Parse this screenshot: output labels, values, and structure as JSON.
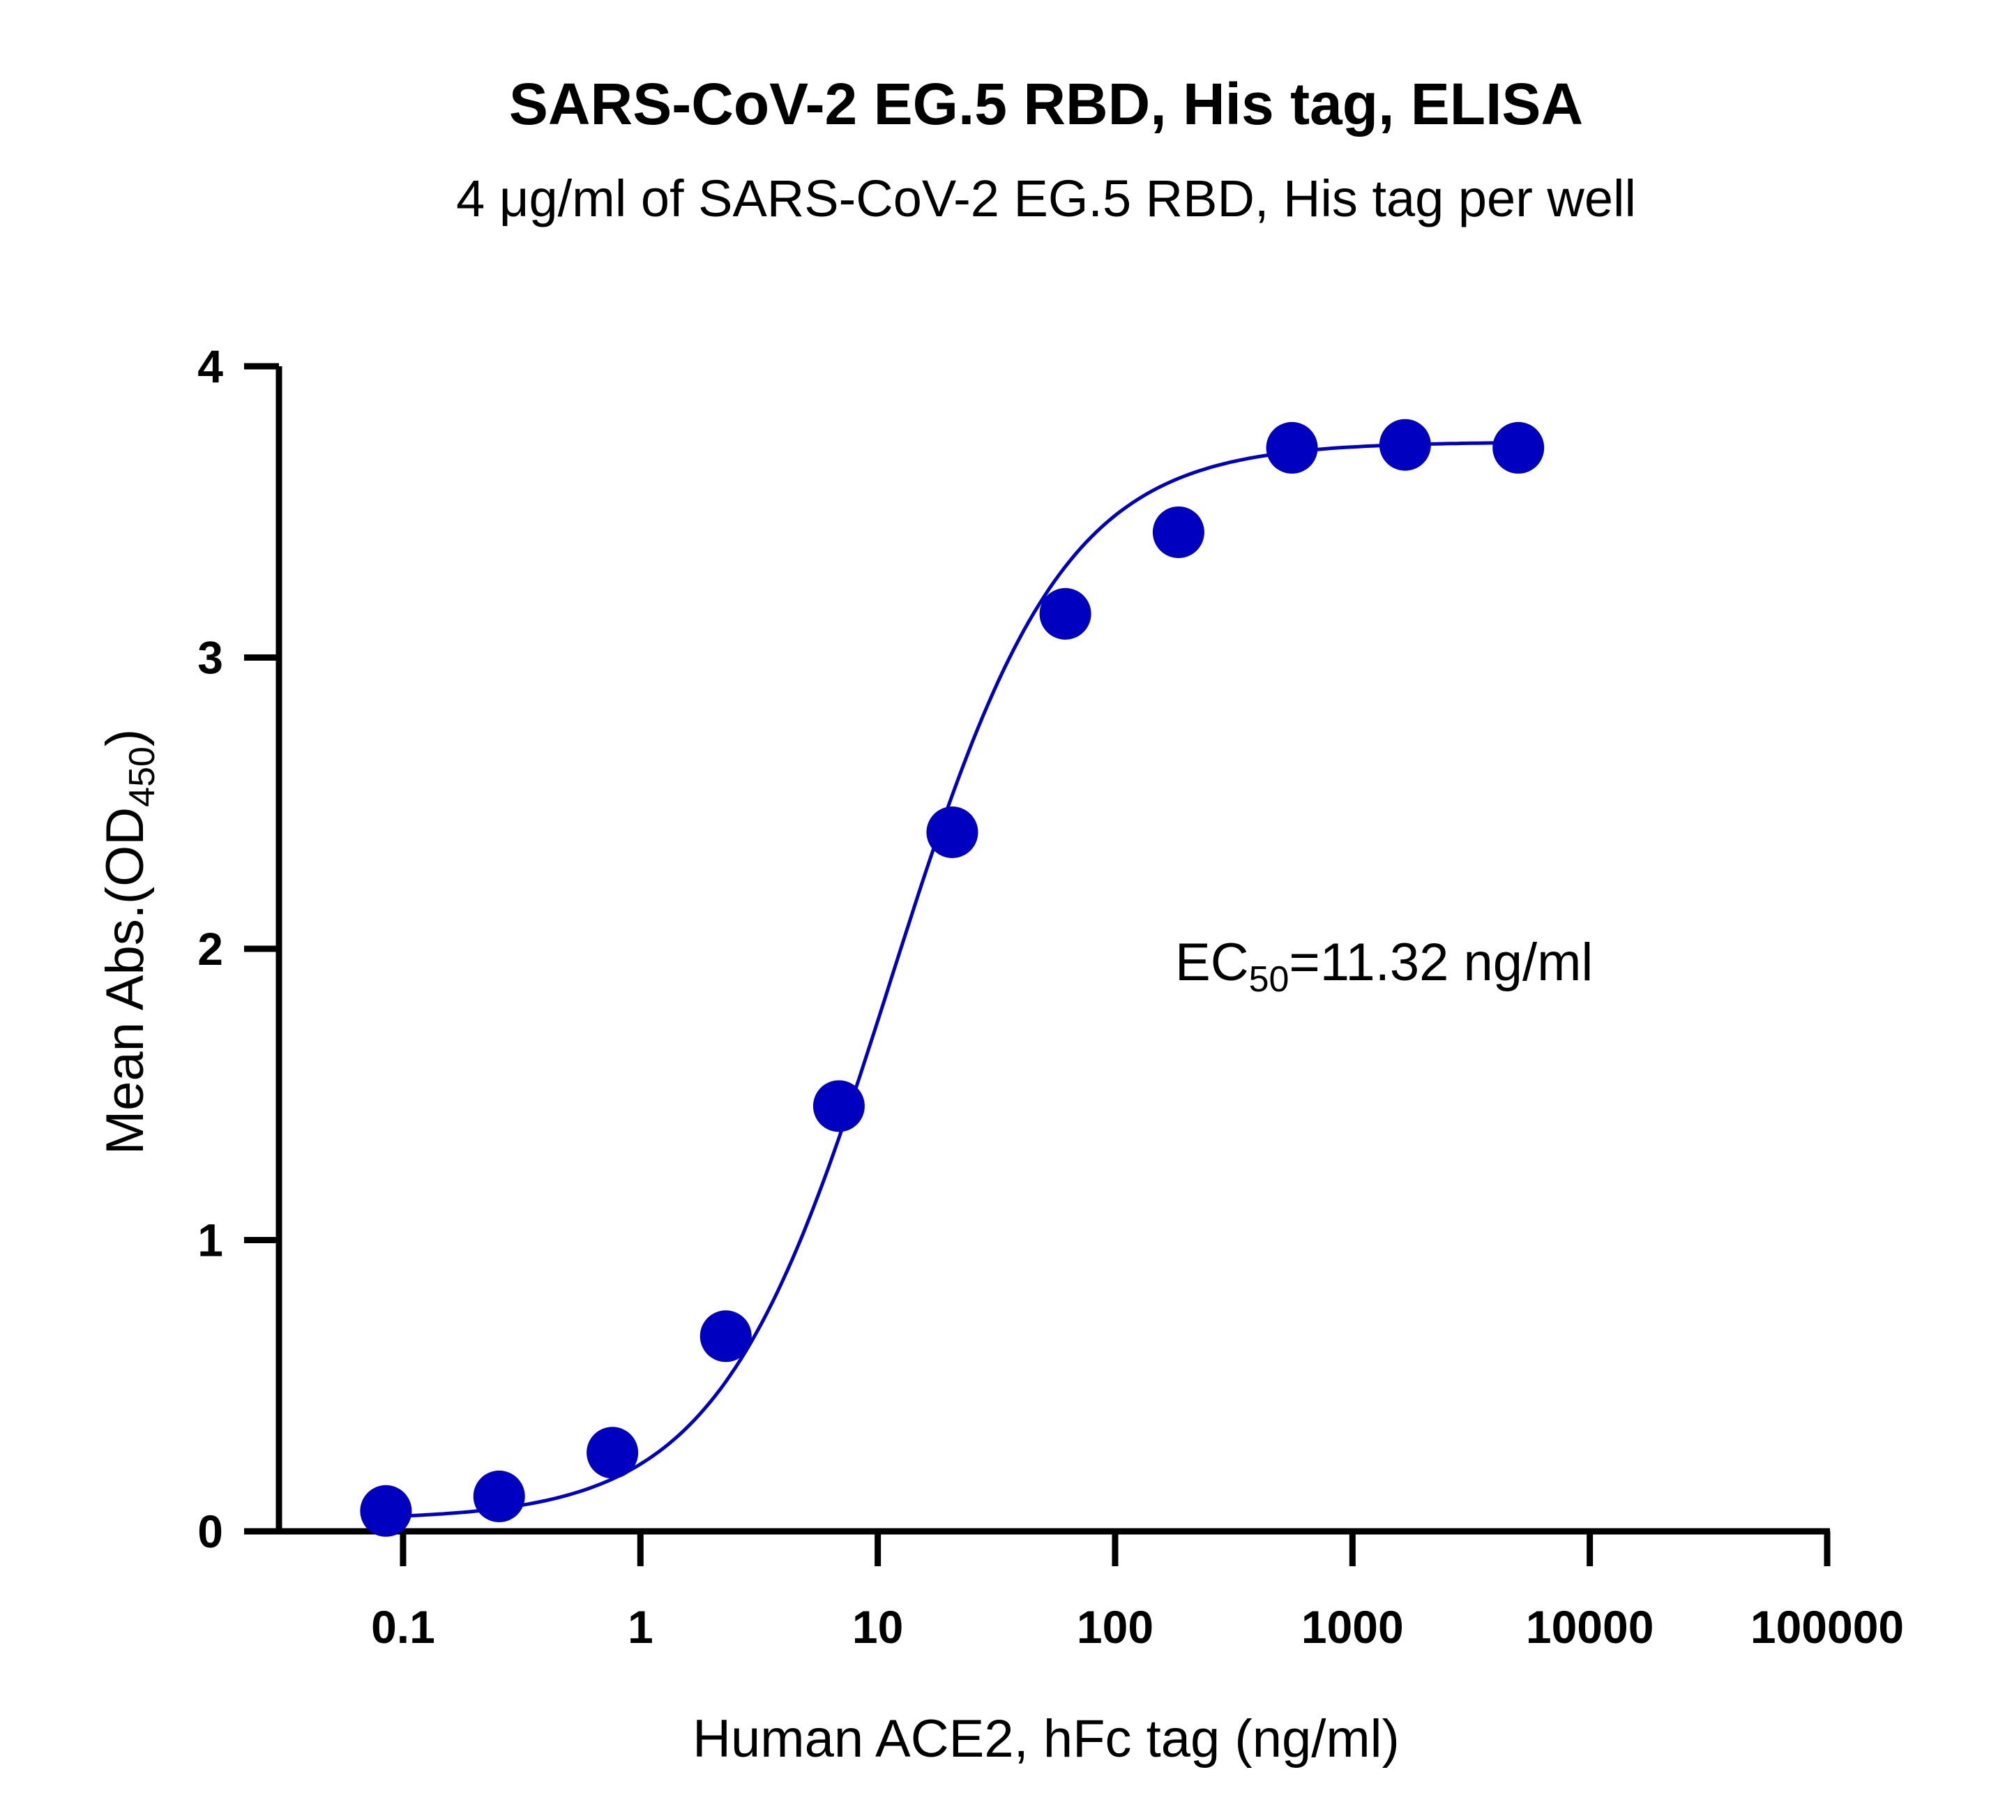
{
  "chart_data": {
    "type": "scatter",
    "title": "SARS-CoV-2 EG.5 RBD, His tag, ELISA",
    "subtitle": "4 μg/ml of SARS-CoV-2 EG.5 RBD, His tag per well",
    "xlabel": "Human ACE2, hFc tag (ng/ml)",
    "ylabel": {
      "main": "Mean Abs.(OD",
      "subscript": "450",
      "suffix": ")"
    },
    "x_scale": "log10",
    "xlim": [
      0.03,
      100000
    ],
    "ylim": [
      0,
      4
    ],
    "x_ticks": [
      {
        "value": 0.1,
        "label": "0.1"
      },
      {
        "value": 1,
        "label": "1"
      },
      {
        "value": 10,
        "label": "10"
      },
      {
        "value": 100,
        "label": "100"
      },
      {
        "value": 1000,
        "label": "1000"
      },
      {
        "value": 10000,
        "label": "10000"
      },
      {
        "value": 100000,
        "label": "100000"
      }
    ],
    "y_ticks": [
      {
        "value": 0,
        "label": "0"
      },
      {
        "value": 1,
        "label": "1"
      },
      {
        "value": 2,
        "label": "2"
      },
      {
        "value": 3,
        "label": "3"
      },
      {
        "value": 4,
        "label": "4"
      }
    ],
    "series": [
      {
        "name": "Human ACE2, hFc tag",
        "color": "#0000C0",
        "x": [
          0.0847,
          0.254,
          0.762,
          2.29,
          6.86,
          20.6,
          61.7,
          185,
          556,
          1667,
          5000
        ],
        "y": [
          0.07,
          0.12,
          0.27,
          0.67,
          1.46,
          2.4,
          3.15,
          3.43,
          3.72,
          3.73,
          3.72
        ]
      }
    ],
    "fit": {
      "model": "4PL",
      "bottom": 0.04,
      "top": 3.74,
      "ec50": 11.32,
      "hill": 1.2
    },
    "annotation": {
      "prefix": "EC",
      "subscript": "50",
      "suffix": "=11.32 ng/ml"
    },
    "grid": false,
    "legend": "none"
  }
}
